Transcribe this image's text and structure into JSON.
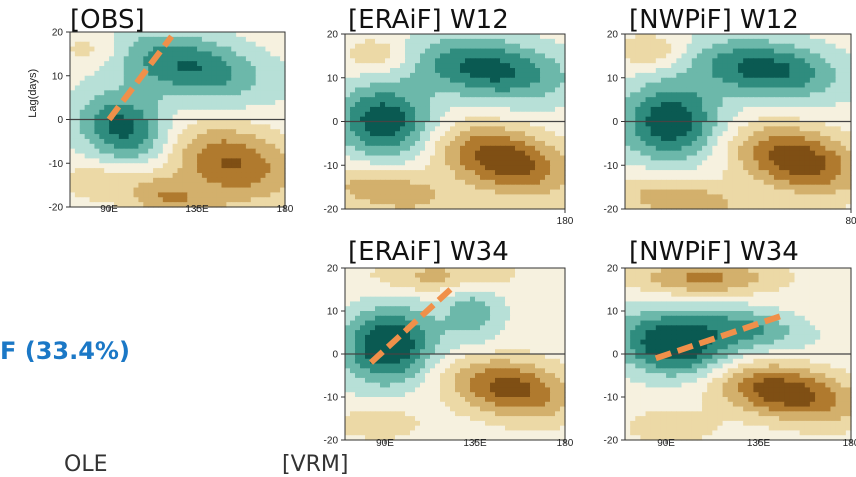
{
  "colors": {
    "deep_teal": "#0a5a52",
    "teal": "#2f8c7e",
    "mid_teal": "#6cb8aa",
    "light_teal": "#b7e0d7",
    "pale": "#f6f1df",
    "light_tan": "#ecd9a6",
    "tan": "#d3b06c",
    "brown": "#b07a2e",
    "dark_brown": "#7f4f14",
    "dash": "#f0904a"
  },
  "side_label": "F    (33.4%)",
  "bottom_fragments": [
    "OLE",
    "[VRM]"
  ],
  "chart_data": [
    {
      "type": "heatmap",
      "title": "[OBS]",
      "ylabel": "Lag(days)",
      "x_ticks": [
        "90E",
        "135E",
        "180"
      ],
      "y_ticks": [
        "20",
        "10",
        "0",
        "-10",
        "-20"
      ],
      "xlim": [
        70,
        180
      ],
      "ylim": [
        -20,
        20
      ],
      "trend_line": {
        "x": [
          90,
          122
        ],
        "y": [
          0,
          19
        ]
      }
    },
    {
      "type": "heatmap",
      "title": "[ERAiF] W12",
      "x_ticks": [
        "180"
      ],
      "y_ticks": [
        "20",
        "10",
        "0",
        "-10",
        "-20"
      ],
      "xlim": [
        70,
        180
      ],
      "ylim": [
        -20,
        20
      ]
    },
    {
      "type": "heatmap",
      "title": "[NWPiF] W12",
      "x_ticks": [
        "80"
      ],
      "y_ticks": [
        "20",
        "10",
        "0",
        "-10",
        "-20"
      ],
      "xlim": [
        70,
        180
      ],
      "ylim": [
        -20,
        20
      ]
    },
    {
      "type": "heatmap",
      "title": "[ERAiF] W34",
      "x_ticks": [
        "90E",
        "135E",
        "180"
      ],
      "y_ticks": [
        "20",
        "10",
        "0",
        "-10",
        "-20"
      ],
      "xlim": [
        70,
        180
      ],
      "ylim": [
        -20,
        20
      ],
      "trend_line": {
        "x": [
          83,
          125
        ],
        "y": [
          -2,
          16
        ]
      }
    },
    {
      "type": "heatmap",
      "title": "[NWPiF] W34",
      "x_ticks": [
        "90E",
        "135E",
        "180"
      ],
      "y_ticks": [
        "20",
        "10",
        "0",
        "-10",
        "-20"
      ],
      "xlim": [
        70,
        180
      ],
      "ylim": [
        -20,
        20
      ],
      "trend_line": {
        "x": [
          85,
          147
        ],
        "y": [
          -1,
          9
        ]
      }
    }
  ]
}
